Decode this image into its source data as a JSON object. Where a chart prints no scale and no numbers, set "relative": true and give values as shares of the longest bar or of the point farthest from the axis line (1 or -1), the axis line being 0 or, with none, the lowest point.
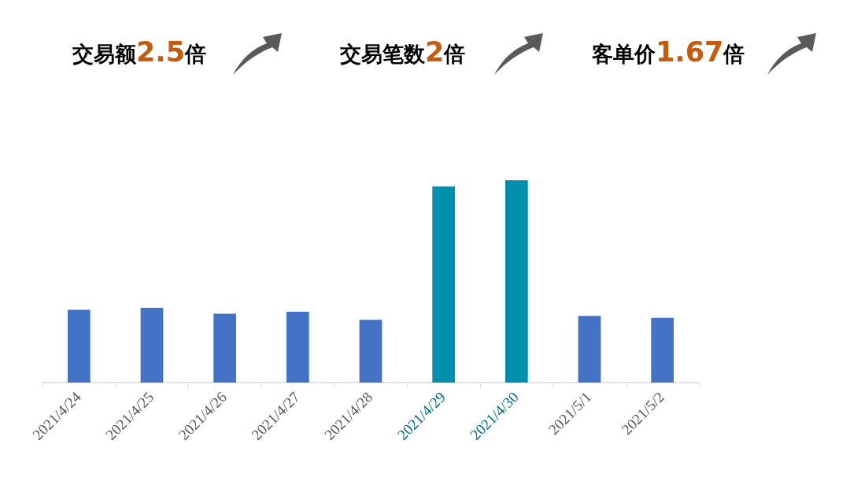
{
  "chart_data": {
    "type": "bar",
    "annotations": [
      "交易额2.5倍",
      "交易笔数2倍",
      "客单价1.67倍"
    ],
    "categories": [
      "2021/4/24",
      "2021/4/25",
      "2021/4/26",
      "2021/4/27",
      "2021/4/28",
      "2021/4/29",
      "2021/4/30",
      "2021/5/1",
      "2021/5/2"
    ],
    "values": [
      0.36,
      0.37,
      0.34,
      0.35,
      0.31,
      0.97,
      1,
      0.33,
      0.32
    ],
    "colors": [
      "#4472c4",
      "#4472c4",
      "#4472c4",
      "#4472c4",
      "#4472c4",
      "#008fac",
      "#008fac",
      "#4472c4",
      "#4472c4"
    ],
    "relative": true,
    "legend": false
  }
}
